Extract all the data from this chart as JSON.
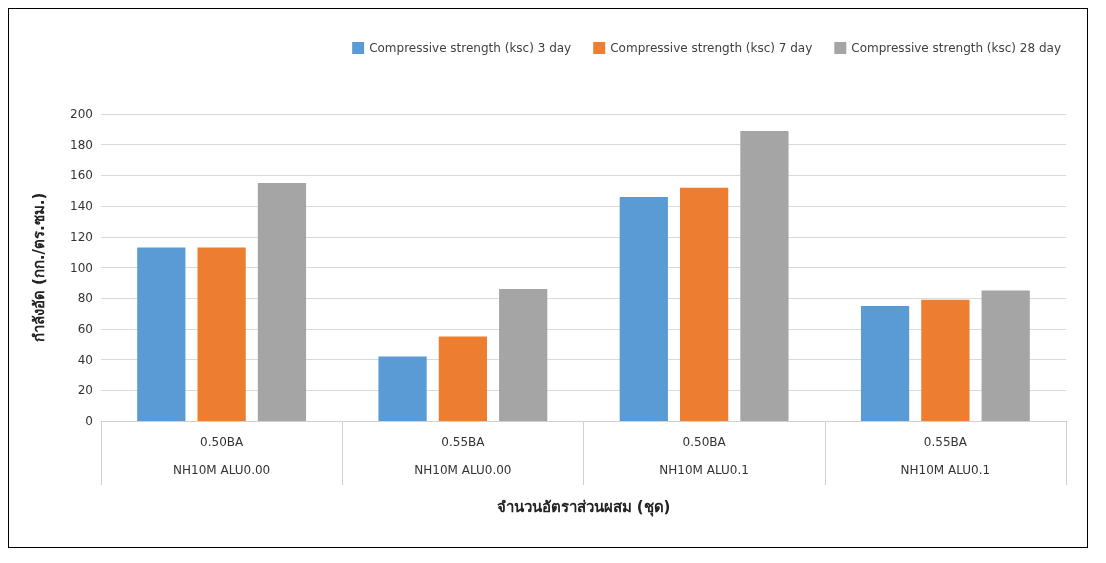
{
  "chart_data": {
    "type": "bar",
    "xlabel": "จำนวนอัตราส่วนผสม (ชุด)",
    "ylabel": "กำลังอัด (กก./ตร.ซม.)",
    "categories": [
      "0.50BA\n\nNH10M ALU0.00",
      "0.55BA\n\nNH10M ALU0.00",
      "0.50BA\n\nNH10M ALU0.1",
      "0.55BA\n\nNH10M ALU0.1"
    ],
    "series": [
      {
        "name": "Compressive strength (ksc) 3 day",
        "color": "#5b9bd5",
        "values": [
          113,
          42,
          146,
          75
        ]
      },
      {
        "name": "Compressive strength (ksc) 7 day",
        "color": "#ed7d31",
        "values": [
          113,
          55,
          152,
          79
        ]
      },
      {
        "name": "Compressive strength (ksc) 28 day",
        "color": "#a5a5a5",
        "values": [
          155,
          86,
          189,
          85
        ]
      }
    ],
    "ylim": [
      0,
      200
    ],
    "yticks": [
      0,
      20,
      40,
      60,
      80,
      100,
      120,
      140,
      160,
      180,
      200
    ],
    "grid": "y",
    "legend": "top right"
  }
}
